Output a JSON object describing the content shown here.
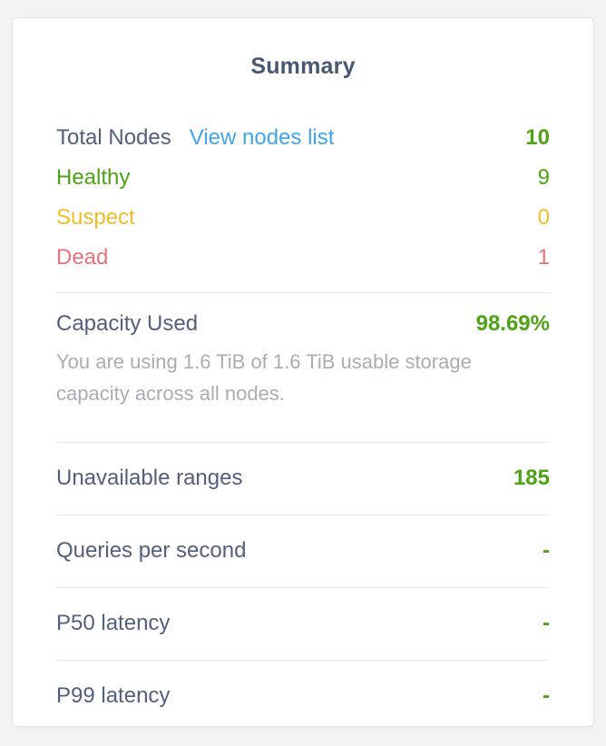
{
  "summary": {
    "title": "Summary",
    "nodes": {
      "total": {
        "label": "Total Nodes",
        "link": "View nodes list",
        "value": "10"
      },
      "statuses": [
        {
          "label": "Healthy",
          "value": "9",
          "color": "#4ca314"
        },
        {
          "label": "Suspect",
          "value": "0",
          "color": "#f1bb28"
        },
        {
          "label": "Dead",
          "value": "1",
          "color": "#ec7078"
        }
      ]
    },
    "capacity": {
      "label": "Capacity Used",
      "value": "98.69%",
      "description": "You are using 1.6 TiB of 1.6 TiB usable storage capacity across all nodes."
    },
    "metrics": [
      {
        "label": "Unavailable ranges",
        "value": "185"
      },
      {
        "label": "Queries per second",
        "value": "-"
      },
      {
        "label": "P50 latency",
        "value": "-"
      },
      {
        "label": "P99 latency",
        "value": "-"
      }
    ]
  },
  "colors": {
    "page_background": "#f3f3f5",
    "card_background": "#ffffff",
    "title_text": "#475872",
    "label_text": "#525f7d",
    "link_blue": "#3ea5ec",
    "healthy_green": "#4ca314",
    "suspect_yellow": "#f1bb28",
    "dead_red": "#ec7078",
    "muted_text": "#a8adb5",
    "divider": "#e9e9ed"
  }
}
